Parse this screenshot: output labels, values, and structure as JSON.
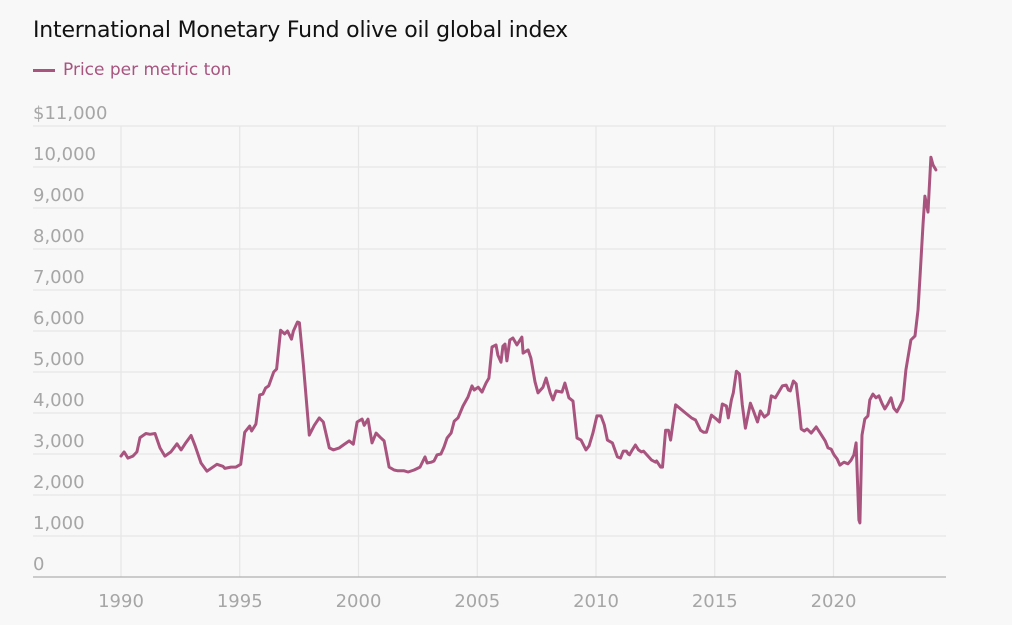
{
  "chart_data": {
    "type": "line",
    "title": "International Monetary Fund olive oil global index",
    "xlabel": "",
    "ylabel": "",
    "legend": {
      "position": "top-left",
      "entries": [
        "Price per metric ton"
      ]
    },
    "grid": true,
    "xlim": [
      1986.3,
      2024.8
    ],
    "ylim": [
      0,
      11000
    ],
    "y_ticks": [
      0,
      1000,
      2000,
      3000,
      4000,
      5000,
      6000,
      7000,
      8000,
      9000,
      10000,
      11000
    ],
    "y_tick_labels": [
      "0",
      "1,000",
      "2,000",
      "3,000",
      "4,000",
      "5,000",
      "6,000",
      "7,000",
      "8,000",
      "9,000",
      "10,000",
      "$11,000"
    ],
    "x_ticks": [
      1990,
      1995,
      2000,
      2005,
      2010,
      2015,
      2020
    ],
    "x_tick_labels": [
      "1990",
      "1995",
      "2000",
      "2005",
      "2010",
      "2015",
      "2020"
    ],
    "colors": {
      "series": "#a8547f",
      "grid": "#e6e6e6",
      "axis": "#b0b0b0",
      "tick_label": "#a6a6a6",
      "title": "#111111"
    },
    "series": [
      {
        "name": "Price per metric ton",
        "x": [
          1990.0,
          1990.13,
          1990.29,
          1990.5,
          1990.67,
          1990.8,
          1991.05,
          1991.22,
          1991.43,
          1991.64,
          1991.85,
          1992.1,
          1992.36,
          1992.53,
          1992.7,
          1992.95,
          1993.12,
          1993.37,
          1993.62,
          1994.04,
          1994.29,
          1994.37,
          1994.63,
          1994.84,
          1995.04,
          1995.21,
          1995.42,
          1995.5,
          1995.68,
          1995.84,
          1995.97,
          1996.09,
          1996.22,
          1996.43,
          1996.55,
          1996.72,
          1996.89,
          1997.01,
          1997.18,
          1997.26,
          1997.43,
          1997.51,
          1997.68,
          1997.81,
          1997.93,
          1998.14,
          1998.35,
          1998.52,
          1998.77,
          1998.94,
          1999.19,
          1999.36,
          1999.61,
          1999.78,
          1999.94,
          2000.15,
          2000.24,
          2000.4,
          2000.57,
          2000.74,
          2000.91,
          2001.08,
          2001.29,
          2001.5,
          2001.66,
          2001.92,
          2002.09,
          2002.34,
          2002.59,
          2002.8,
          2002.89,
          2003.06,
          2003.18,
          2003.31,
          2003.47,
          2003.6,
          2003.73,
          2003.9,
          2004.03,
          2004.19,
          2004.4,
          2004.61,
          2004.78,
          2004.87,
          2005.04,
          2005.2,
          2005.37,
          2005.49,
          2005.62,
          2005.79,
          2005.87,
          2006.0,
          2006.08,
          2006.17,
          2006.25,
          2006.37,
          2006.5,
          2006.67,
          2006.88,
          2006.93,
          2007.14,
          2007.26,
          2007.43,
          2007.56,
          2007.77,
          2007.9,
          2008.07,
          2008.19,
          2008.32,
          2008.57,
          2008.69,
          2008.86,
          2009.03,
          2009.2,
          2009.37,
          2009.58,
          2009.71,
          2009.87,
          2010.04,
          2010.21,
          2010.35,
          2010.48,
          2010.69,
          2010.9,
          2011.03,
          2011.15,
          2011.28,
          2011.36,
          2011.41,
          2011.53,
          2011.66,
          2011.79,
          2011.91,
          2012.0,
          2012.08,
          2012.34,
          2012.51,
          2012.55,
          2012.72,
          2012.8,
          2012.93,
          2013.05,
          2013.14,
          2013.35,
          2013.77,
          2014.02,
          2014.19,
          2014.4,
          2014.53,
          2014.65,
          2014.74,
          2014.86,
          2015.07,
          2015.2,
          2015.32,
          2015.49,
          2015.57,
          2015.7,
          2015.78,
          2015.91,
          2016.04,
          2016.16,
          2016.29,
          2016.5,
          2016.63,
          2016.8,
          2016.92,
          2017.09,
          2017.26,
          2017.38,
          2017.55,
          2017.85,
          2018.01,
          2018.1,
          2018.18,
          2018.31,
          2018.43,
          2018.56,
          2018.64,
          2018.77,
          2018.89,
          2019.06,
          2019.27,
          2019.44,
          2019.65,
          2019.77,
          2019.9,
          2020.02,
          2020.15,
          2020.27,
          2020.44,
          2020.61,
          2020.74,
          2020.86,
          2020.95,
          2021.07,
          2021.11,
          2021.2,
          2021.32,
          2021.45,
          2021.53,
          2021.66,
          2021.79,
          2021.91,
          2022.04,
          2022.16,
          2022.29,
          2022.42,
          2022.54,
          2022.67,
          2022.8,
          2022.92,
          2023.05,
          2023.26,
          2023.43,
          2023.56,
          2023.64,
          2023.77,
          2023.85,
          2023.98,
          2024.1,
          2024.19,
          2024.31
        ],
        "values": [
          2950,
          3050,
          2900,
          2950,
          3050,
          3400,
          3500,
          3480,
          3500,
          3150,
          2950,
          3050,
          3250,
          3100,
          3250,
          3450,
          3200,
          2780,
          2580,
          2750,
          2700,
          2650,
          2680,
          2680,
          2750,
          3530,
          3680,
          3560,
          3730,
          4440,
          4460,
          4610,
          4660,
          5000,
          5070,
          6020,
          5930,
          6000,
          5800,
          6000,
          6220,
          6200,
          5170,
          4270,
          3460,
          3700,
          3880,
          3780,
          3150,
          3100,
          3150,
          3220,
          3320,
          3240,
          3780,
          3850,
          3700,
          3850,
          3270,
          3510,
          3410,
          3320,
          2680,
          2610,
          2590,
          2590,
          2560,
          2610,
          2680,
          2930,
          2780,
          2800,
          2830,
          2980,
          3000,
          3170,
          3390,
          3510,
          3800,
          3880,
          4170,
          4390,
          4660,
          4560,
          4630,
          4510,
          4730,
          4850,
          5610,
          5660,
          5410,
          5240,
          5630,
          5680,
          5270,
          5780,
          5830,
          5660,
          5850,
          5460,
          5540,
          5340,
          4760,
          4490,
          4630,
          4850,
          4490,
          4320,
          4540,
          4510,
          4730,
          4370,
          4290,
          3390,
          3340,
          3100,
          3200,
          3510,
          3930,
          3930,
          3710,
          3340,
          3270,
          2930,
          2900,
          3070,
          3070,
          3000,
          2980,
          3100,
          3220,
          3100,
          3050,
          3070,
          3020,
          2850,
          2800,
          2830,
          2680,
          2680,
          3580,
          3580,
          3340,
          4200,
          4000,
          3880,
          3830,
          3580,
          3530,
          3530,
          3710,
          3950,
          3850,
          3780,
          4220,
          4170,
          3880,
          4320,
          4490,
          5020,
          4950,
          4200,
          3630,
          4240,
          4050,
          3780,
          4050,
          3900,
          3980,
          4420,
          4370,
          4660,
          4680,
          4560,
          4540,
          4780,
          4710,
          4070,
          3610,
          3560,
          3610,
          3510,
          3660,
          3510,
          3320,
          3150,
          3120,
          2980,
          2880,
          2730,
          2800,
          2760,
          2850,
          2980,
          3270,
          1390,
          1320,
          3460,
          3850,
          3930,
          4320,
          4460,
          4370,
          4420,
          4240,
          4100,
          4220,
          4370,
          4120,
          4030,
          4170,
          4320,
          5050,
          5780,
          5880,
          6510,
          7320,
          8590,
          9290,
          8900,
          10240,
          10050,
          9930
        ]
      }
    ]
  }
}
